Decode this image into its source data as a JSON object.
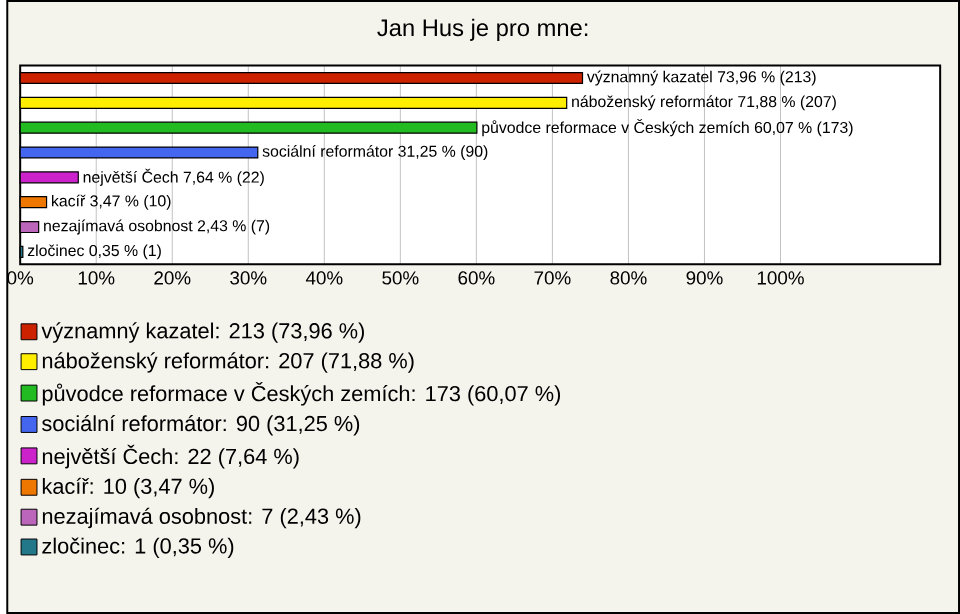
{
  "chart_data": {
    "type": "bar",
    "orientation": "horizontal",
    "title": "Jan Hus je pro mne:",
    "categories": [
      null,
      null,
      null,
      null,
      null,
      null,
      null,
      null
    ],
    "series": [
      {
        "name": "významný kazatel: 213 (73,96 %)",
        "color": "#cc2200",
        "values": [
          73.96,
          null,
          null,
          null,
          null,
          null,
          null,
          null
        ],
        "value_labels": [
          "významný kazatel 73,96 % (213)",
          null,
          null,
          null,
          null,
          null,
          null,
          null
        ]
      },
      {
        "name": "náboženský reformátor: 207 (71,88 %)",
        "color": "#ffee00",
        "values": [
          null,
          71.88,
          null,
          null,
          null,
          null,
          null,
          null
        ],
        "value_labels": [
          null,
          "náboženský reformátor 71,88 % (207)",
          null,
          null,
          null,
          null,
          null,
          null
        ]
      },
      {
        "name": "původce reformace v Českých zemích: 173 (60,07 %)",
        "color": "#22bb22",
        "values": [
          null,
          null,
          60.07,
          null,
          null,
          null,
          null,
          null
        ],
        "value_labels": [
          null,
          null,
          "původce reformace v Českých zemích 60,07 % (173)",
          null,
          null,
          null,
          null,
          null
        ]
      },
      {
        "name": "sociální reformátor: 90 (31,25 %)",
        "color": "#4466ee",
        "values": [
          null,
          null,
          null,
          31.25,
          null,
          null,
          null,
          null
        ],
        "value_labels": [
          null,
          null,
          null,
          "sociální reformátor 31,25 % (90)",
          null,
          null,
          null,
          null
        ]
      },
      {
        "name": "největší Čech: 22 (7,64 %)",
        "color": "#cc22cc",
        "values": [
          null,
          null,
          null,
          null,
          7.64,
          null,
          null,
          null
        ],
        "value_labels": [
          null,
          null,
          null,
          null,
          "největší Čech 7,64 % (22)",
          null,
          null,
          null
        ]
      },
      {
        "name": "kacíř: 10 (3,47 %)",
        "color": "#ee7700",
        "values": [
          null,
          null,
          null,
          null,
          null,
          3.47,
          null,
          null
        ],
        "value_labels": [
          null,
          null,
          null,
          null,
          null,
          "kacíř 3,47 % (10)",
          null,
          null
        ]
      },
      {
        "name": "nezajímavá osobnost: 7 (2,43 %)",
        "color": "#bb66bb",
        "values": [
          null,
          null,
          null,
          null,
          null,
          null,
          2.43,
          null
        ],
        "value_labels": [
          null,
          null,
          null,
          null,
          null,
          null,
          "nezajímavá osobnost 2,43 % (7)",
          null
        ]
      },
      {
        "name": "zločinec: 1 (0,35 %)",
        "color": "#227788",
        "values": [
          null,
          null,
          null,
          null,
          null,
          null,
          null,
          0.35
        ],
        "value_labels": [
          null,
          null,
          null,
          null,
          null,
          null,
          null,
          "zločinec 0,35 % (1)"
        ]
      }
    ],
    "xlim": [
      0,
      121
    ],
    "xticks": [
      {
        "value": 0,
        "label": "0%"
      },
      {
        "value": 10,
        "label": "10%"
      },
      {
        "value": 20,
        "label": "20%"
      },
      {
        "value": 30,
        "label": "30%"
      },
      {
        "value": 40,
        "label": "40%"
      },
      {
        "value": 50,
        "label": "50%"
      },
      {
        "value": 60,
        "label": "60%"
      },
      {
        "value": 70,
        "label": "70%"
      },
      {
        "value": 80,
        "label": "80%"
      },
      {
        "value": 90,
        "label": "90%"
      },
      {
        "value": 100,
        "label": "100%"
      }
    ],
    "grid": "x",
    "legend": "bottom",
    "tick_labels": "x"
  }
}
